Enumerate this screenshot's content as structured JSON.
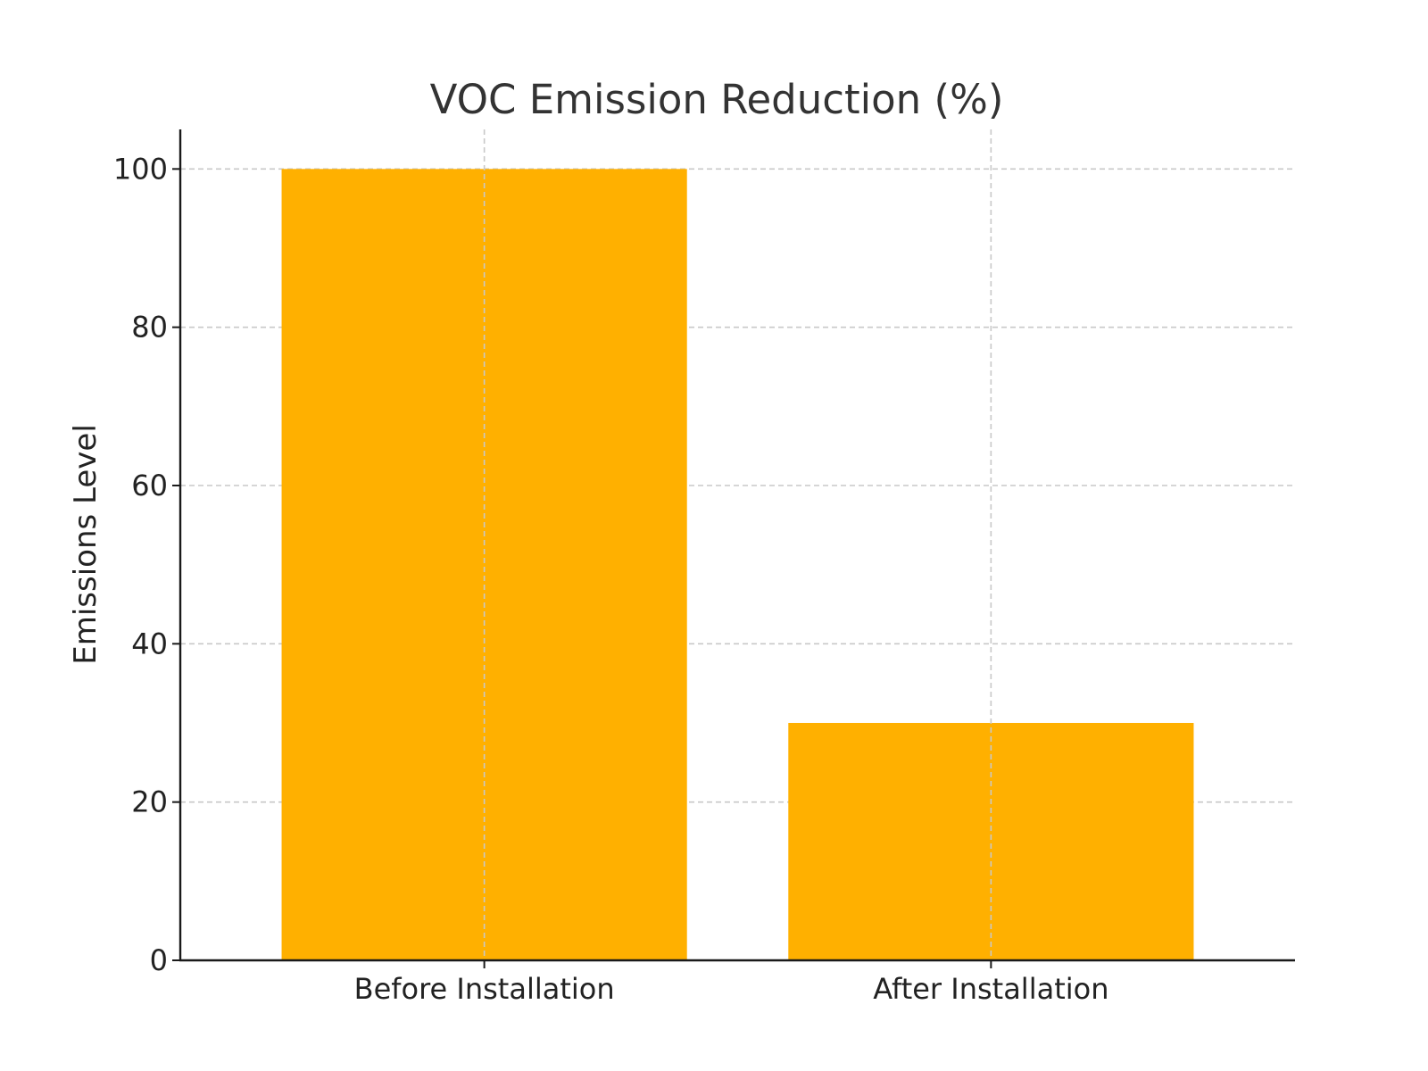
{
  "chart_data": {
    "type": "bar",
    "title": "VOC Emission Reduction (%)",
    "xlabel": "",
    "ylabel": "Emissions Level",
    "categories": [
      "Before Installation",
      "After Installation"
    ],
    "values": [
      100,
      30
    ],
    "ylim": [
      0,
      105
    ],
    "yticks": [
      0,
      20,
      40,
      60,
      80,
      100
    ],
    "grid": true,
    "colors": {
      "bar": "#FFB000"
    }
  }
}
